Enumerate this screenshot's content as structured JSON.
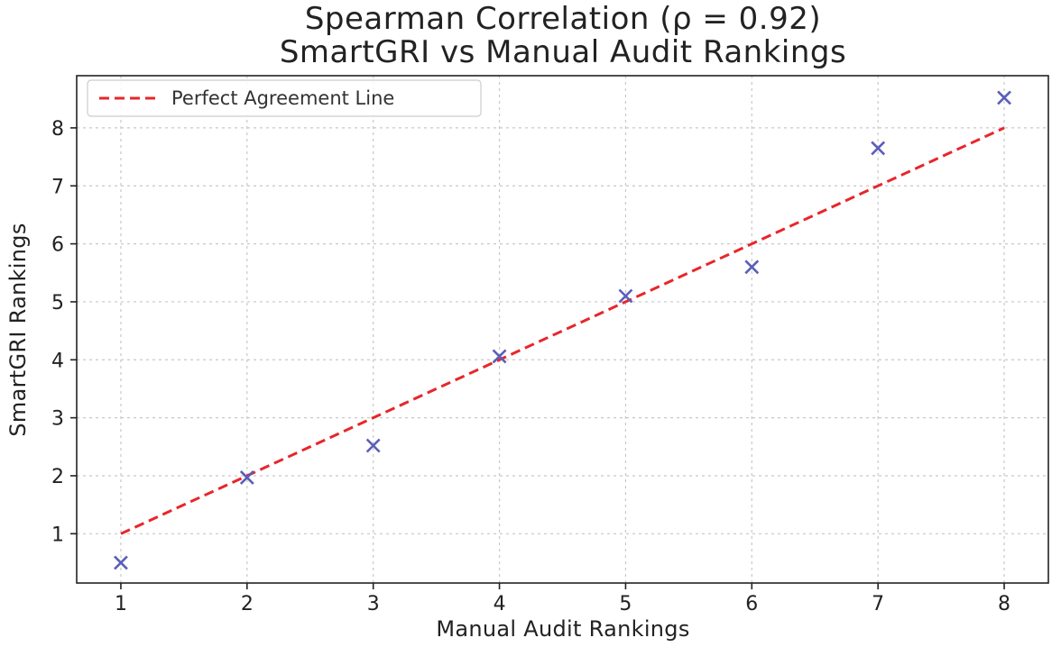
{
  "chart_data": {
    "type": "scatter",
    "title": [
      "Spearman Correlation (ρ = 0.92)",
      "SmartGRI vs Manual Audit Rankings"
    ],
    "xlabel": "Manual Audit Rankings",
    "ylabel": "SmartGRI Rankings",
    "xlim": [
      0.65,
      8.35
    ],
    "ylim": [
      0.15,
      8.9
    ],
    "xticks": [
      "1",
      "2",
      "3",
      "4",
      "5",
      "6",
      "7",
      "8"
    ],
    "yticks": [
      "1",
      "2",
      "3",
      "4",
      "5",
      "6",
      "7",
      "8"
    ],
    "grid": true,
    "legend": {
      "position": "top-left",
      "entries": [
        "Perfect Agreement Line"
      ]
    },
    "reference_line": {
      "name": "Perfect Agreement Line",
      "x": [
        1,
        8
      ],
      "y": [
        1,
        8
      ],
      "style": "dashed",
      "color": "#e8262a"
    },
    "series": [
      {
        "marker": "x",
        "color": "#5a5fb8",
        "x": [
          1,
          2,
          3,
          4,
          5,
          6,
          7,
          8
        ],
        "y": [
          0.5,
          1.97,
          2.52,
          4.06,
          5.1,
          5.6,
          7.65,
          8.52
        ]
      }
    ]
  }
}
